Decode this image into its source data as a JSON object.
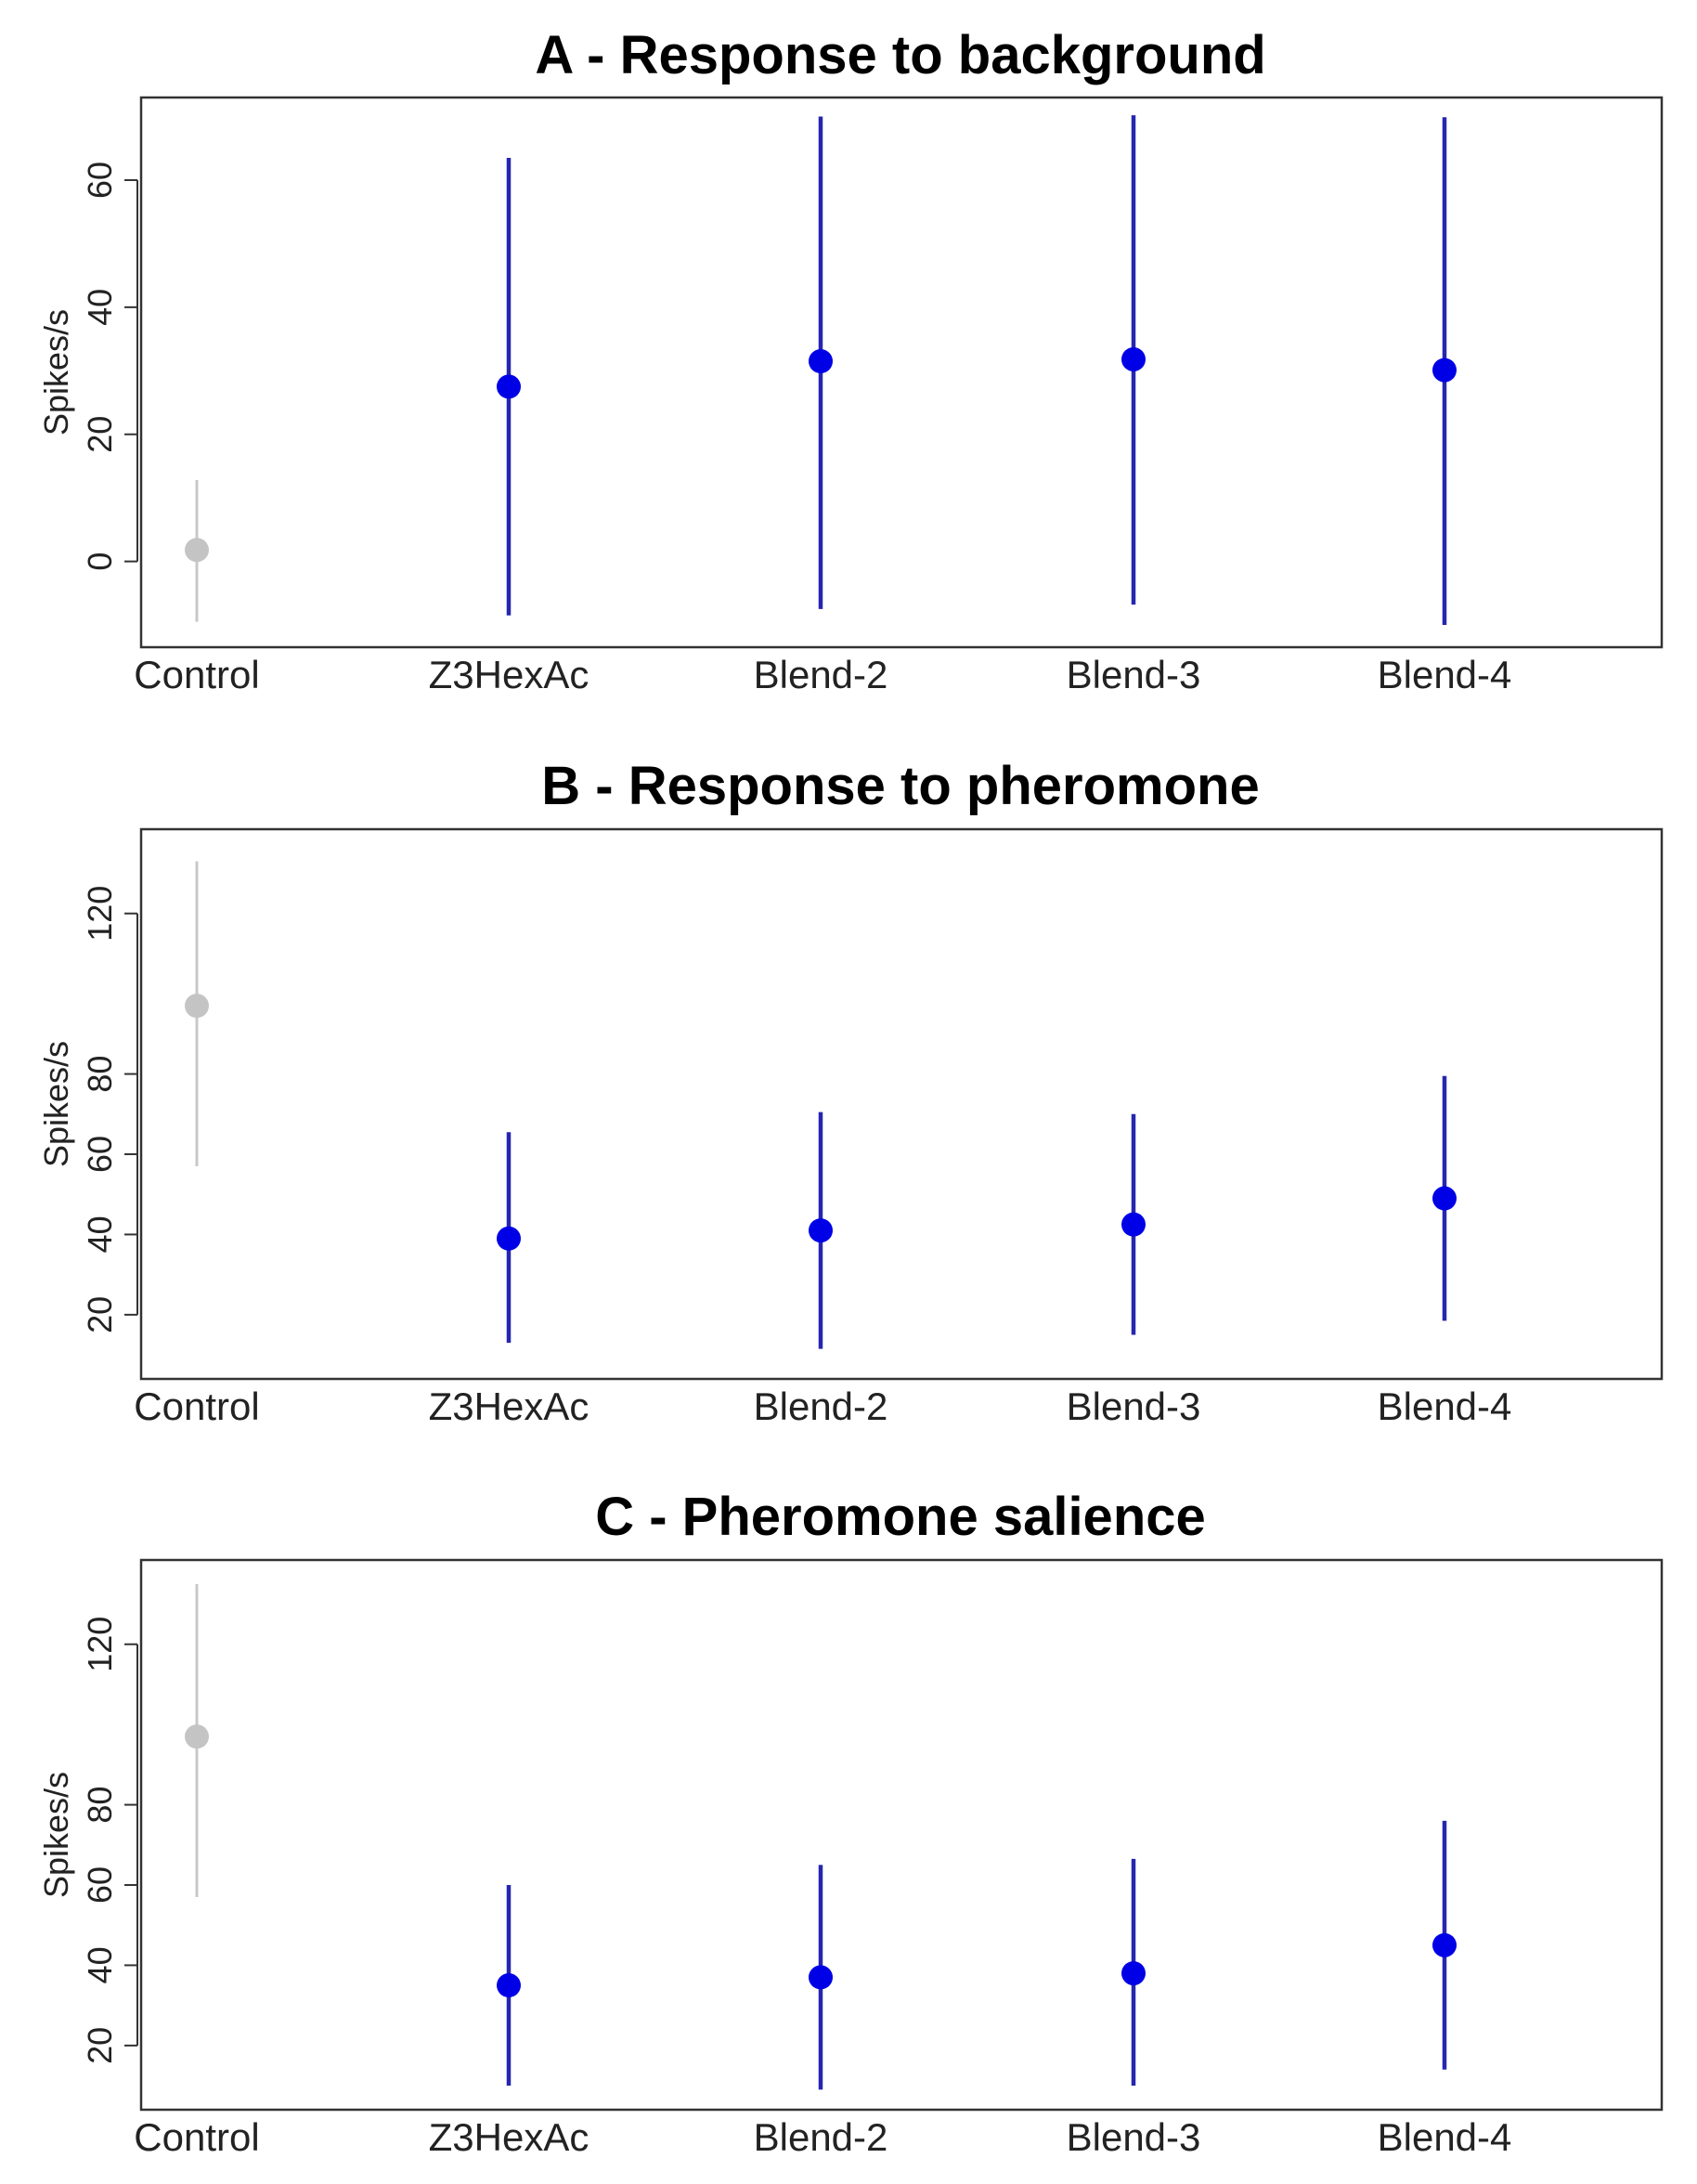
{
  "chart_data": [
    {
      "type": "scatter",
      "title": "A - Response to background",
      "xlabel": "",
      "ylabel": "Spikes/s",
      "categories": [
        "Control",
        "Z3HexAc",
        "Blend-2",
        "Blend-3",
        "Blend-4"
      ],
      "yticks": [
        0,
        20,
        40,
        60
      ],
      "ylim": [
        -13.5,
        73
      ],
      "means": [
        1.8,
        27.5,
        31.5,
        31.8,
        30.1
      ],
      "lower": [
        -9.5,
        -8.5,
        -7.5,
        -6.8,
        -10
      ],
      "upper": [
        12.8,
        63.5,
        70,
        70.2,
        69.9
      ]
    },
    {
      "type": "scatter",
      "title": "B - Response to pheromone",
      "xlabel": "",
      "ylabel": "Spikes/s",
      "categories": [
        "Control",
        "Z3HexAc",
        "Blend-2",
        "Blend-3",
        "Blend-4"
      ],
      "yticks": [
        20,
        40,
        60,
        80,
        120
      ],
      "ylim": [
        4,
        141
      ],
      "means": [
        97,
        39,
        41,
        42.5,
        49
      ],
      "lower": [
        57,
        13,
        11.5,
        15,
        18.5
      ],
      "upper": [
        133,
        65.5,
        70.5,
        70,
        79.5
      ]
    },
    {
      "type": "scatter",
      "title": "C - Pheromone salience",
      "xlabel": "",
      "ylabel": "Spikes/s",
      "categories": [
        "Control",
        "Z3HexAc",
        "Blend-2",
        "Blend-3",
        "Blend-4"
      ],
      "yticks": [
        20,
        40,
        60,
        80,
        120
      ],
      "ylim": [
        4,
        141
      ],
      "means": [
        97,
        35,
        37,
        38,
        45
      ],
      "lower": [
        57,
        10,
        9,
        10,
        14
      ],
      "upper": [
        135,
        60,
        65,
        66.5,
        76
      ]
    }
  ],
  "colors": {
    "control_point": "#c4c4c4",
    "control_bar": "#c8c8c8",
    "treatment_point": "#0000e6",
    "treatment_bar": "#2626b0",
    "frame": "#333333"
  }
}
